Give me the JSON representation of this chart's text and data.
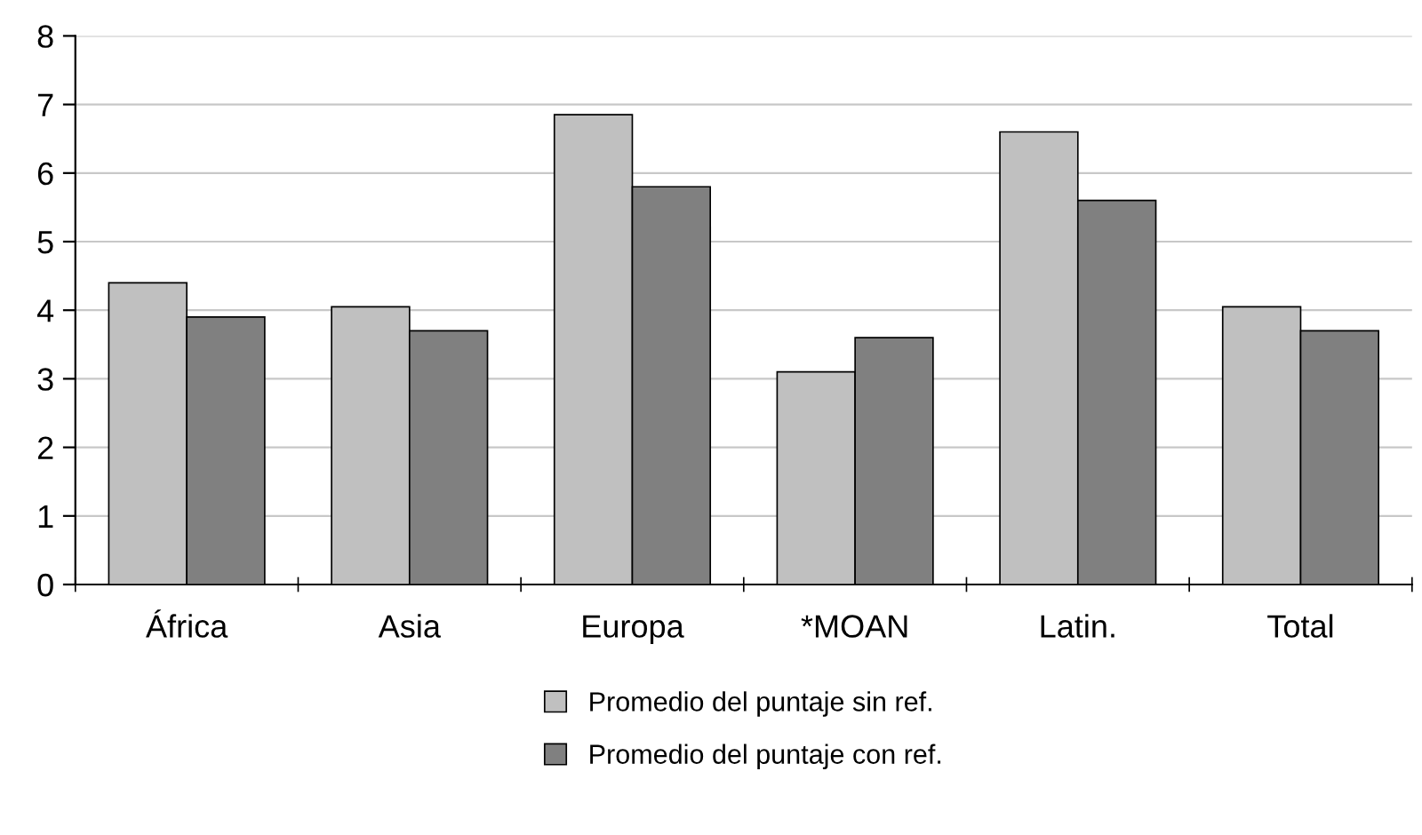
{
  "chart_data": {
    "type": "bar",
    "categories": [
      "África",
      "Asia",
      "Europa",
      "*MOAN",
      "Latin.",
      "Total"
    ],
    "series": [
      {
        "name": "Promedio del puntaje sin ref.",
        "color": "#c0c0c0",
        "values": [
          4.4,
          4.05,
          6.85,
          3.1,
          6.6,
          4.05
        ]
      },
      {
        "name": "Promedio del puntaje con ref.",
        "color": "#808080",
        "values": [
          3.9,
          3.7,
          5.8,
          3.6,
          5.6,
          3.7
        ]
      }
    ],
    "ylim": [
      0,
      8
    ],
    "yticks": [
      0,
      1,
      2,
      3,
      4,
      5,
      6,
      7,
      8
    ],
    "grid": "y",
    "legend": "bottom"
  }
}
